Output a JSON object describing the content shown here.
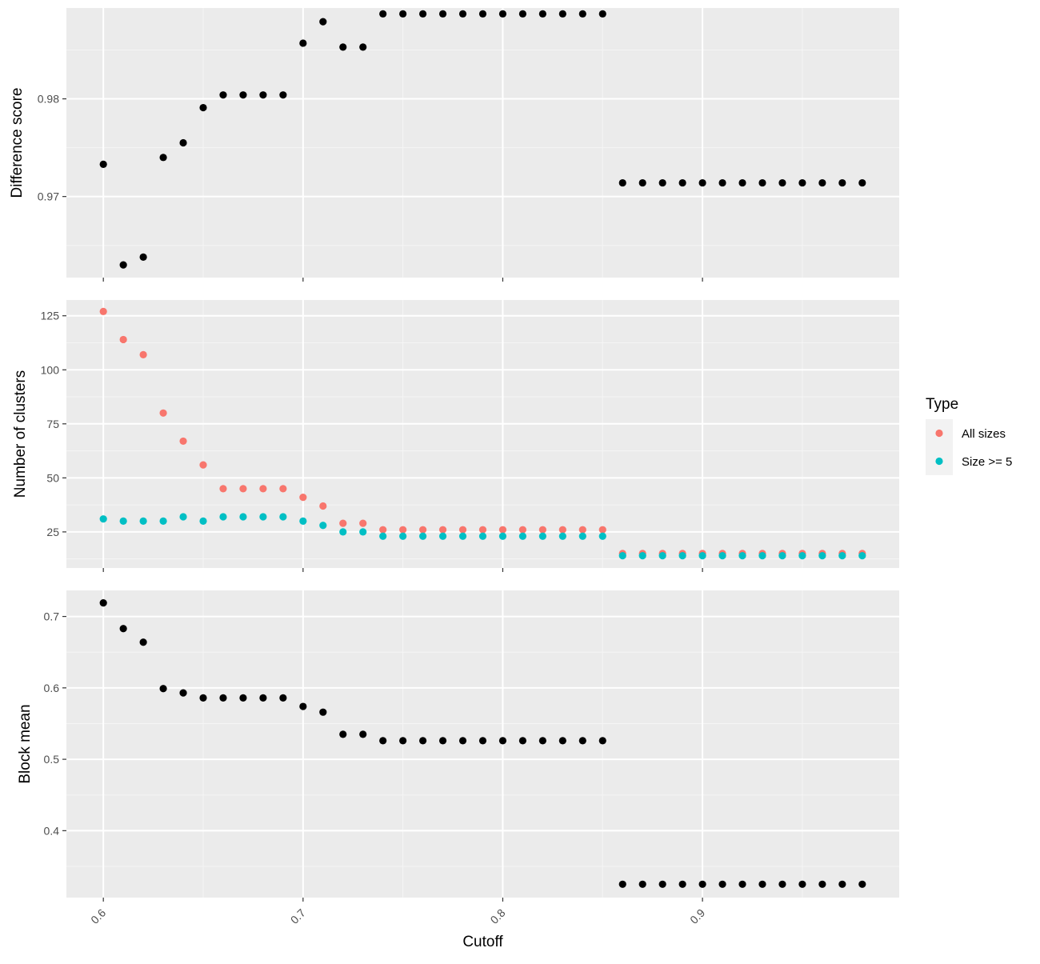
{
  "chart_data": [
    {
      "type": "scatter",
      "ylabel": "Difference score",
      "xlim": [
        0.5815,
        0.9985
      ],
      "ylim": [
        0.9617,
        0.9893
      ],
      "yticks": [
        0.97,
        0.98
      ],
      "ytick_labels": [
        "0.97",
        "0.98"
      ],
      "point_color": "#000000",
      "x": [
        0.6,
        0.61,
        0.62,
        0.63,
        0.64,
        0.65,
        0.66,
        0.67,
        0.68,
        0.69,
        0.7,
        0.71,
        0.72,
        0.73,
        0.74,
        0.75,
        0.76,
        0.77,
        0.78,
        0.79,
        0.8,
        0.81,
        0.82,
        0.83,
        0.84,
        0.85,
        0.86,
        0.87,
        0.88,
        0.89,
        0.9,
        0.91,
        0.92,
        0.93,
        0.94,
        0.95,
        0.96,
        0.97,
        0.98
      ],
      "y": [
        0.9733,
        0.963,
        0.9638,
        0.974,
        0.9755,
        0.9791,
        0.9804,
        0.9804,
        0.9804,
        0.9804,
        0.9857,
        0.9879,
        0.9853,
        0.9853,
        0.9887,
        0.9887,
        0.9887,
        0.9887,
        0.9887,
        0.9887,
        0.9887,
        0.9887,
        0.9887,
        0.9887,
        0.9887,
        0.9887,
        0.9714,
        0.9714,
        0.9714,
        0.9714,
        0.9714,
        0.9714,
        0.9714,
        0.9714,
        0.9714,
        0.9714,
        0.9714,
        0.9714,
        0.9714
      ]
    },
    {
      "type": "scatter",
      "ylabel": "Number of clusters",
      "xlim": [
        0.5815,
        0.9985
      ],
      "ylim": [
        8.3,
        132.3
      ],
      "yticks": [
        25,
        50,
        75,
        100,
        125
      ],
      "ytick_labels": [
        "25",
        "50",
        "75",
        "100",
        "125"
      ],
      "legend": {
        "title": "Type",
        "position": "right"
      },
      "series": [
        {
          "name": "All sizes",
          "color": "#F8766D",
          "x": [
            0.6,
            0.61,
            0.62,
            0.63,
            0.64,
            0.65,
            0.66,
            0.67,
            0.68,
            0.69,
            0.7,
            0.71,
            0.72,
            0.73,
            0.74,
            0.75,
            0.76,
            0.77,
            0.78,
            0.79,
            0.8,
            0.81,
            0.82,
            0.83,
            0.84,
            0.85,
            0.86,
            0.87,
            0.88,
            0.89,
            0.9,
            0.91,
            0.92,
            0.93,
            0.94,
            0.95,
            0.96,
            0.97,
            0.98
          ],
          "y": [
            127,
            114,
            107,
            80,
            67,
            56,
            45,
            45,
            45,
            45,
            41,
            37,
            29,
            29,
            26,
            26,
            26,
            26,
            26,
            26,
            26,
            26,
            26,
            26,
            26,
            26,
            15,
            15,
            15,
            15,
            15,
            15,
            15,
            15,
            15,
            15,
            15,
            15,
            15
          ]
        },
        {
          "name": "Size >= 5",
          "color": "#00BFC4",
          "x": [
            0.6,
            0.61,
            0.62,
            0.63,
            0.64,
            0.65,
            0.66,
            0.67,
            0.68,
            0.69,
            0.7,
            0.71,
            0.72,
            0.73,
            0.74,
            0.75,
            0.76,
            0.77,
            0.78,
            0.79,
            0.8,
            0.81,
            0.82,
            0.83,
            0.84,
            0.85,
            0.86,
            0.87,
            0.88,
            0.89,
            0.9,
            0.91,
            0.92,
            0.93,
            0.94,
            0.95,
            0.96,
            0.97,
            0.98
          ],
          "y": [
            31,
            30,
            30,
            30,
            32,
            30,
            32,
            32,
            32,
            32,
            30,
            28,
            25,
            25,
            23,
            23,
            23,
            23,
            23,
            23,
            23,
            23,
            23,
            23,
            23,
            23,
            14,
            14,
            14,
            14,
            14,
            14,
            14,
            14,
            14,
            14,
            14,
            14,
            14
          ]
        }
      ]
    },
    {
      "type": "scatter",
      "ylabel": "Block mean",
      "xlabel": "Cutoff",
      "xlim": [
        0.5815,
        0.9985
      ],
      "ylim": [
        0.3063,
        0.7365
      ],
      "xticks": [
        0.6,
        0.7,
        0.8,
        0.9
      ],
      "xtick_labels": [
        "0.6",
        "0.7",
        "0.8",
        "0.9"
      ],
      "yticks": [
        0.4,
        0.5,
        0.6,
        0.7
      ],
      "ytick_labels": [
        "0.4",
        "0.5",
        "0.6",
        "0.7"
      ],
      "point_color": "#000000",
      "x": [
        0.6,
        0.61,
        0.62,
        0.63,
        0.64,
        0.65,
        0.66,
        0.67,
        0.68,
        0.69,
        0.7,
        0.71,
        0.72,
        0.73,
        0.74,
        0.75,
        0.76,
        0.77,
        0.78,
        0.79,
        0.8,
        0.81,
        0.82,
        0.83,
        0.84,
        0.85,
        0.86,
        0.87,
        0.88,
        0.89,
        0.9,
        0.91,
        0.92,
        0.93,
        0.94,
        0.95,
        0.96,
        0.97,
        0.98
      ],
      "y": [
        0.719,
        0.683,
        0.664,
        0.599,
        0.593,
        0.586,
        0.586,
        0.586,
        0.586,
        0.586,
        0.574,
        0.566,
        0.535,
        0.535,
        0.526,
        0.526,
        0.526,
        0.526,
        0.526,
        0.526,
        0.526,
        0.526,
        0.526,
        0.526,
        0.526,
        0.526,
        0.325,
        0.325,
        0.325,
        0.325,
        0.325,
        0.325,
        0.325,
        0.325,
        0.325,
        0.325,
        0.325,
        0.325,
        0.325
      ]
    }
  ]
}
